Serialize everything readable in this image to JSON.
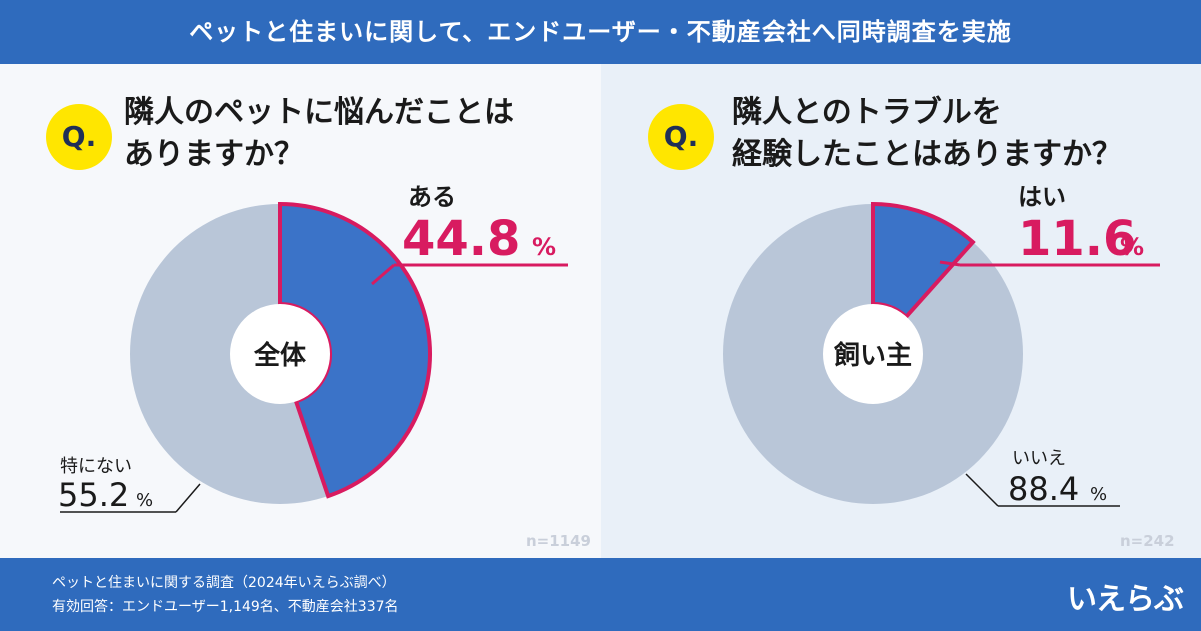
{
  "header": {
    "title": "ペットと住まいに関して、エンドユーザー・不動産会社へ同時調査を実施"
  },
  "footer": {
    "line1": "ペットと住まいに関する調査（2024年いえらぶ調べ）",
    "line2": "有効回答：エンドユーザー1,149名、不動産会社337名",
    "logo": "いえらぶ"
  },
  "left": {
    "q_badge": "Q.",
    "question_line1": "隣人のペットに悩んだことは",
    "question_line2": "ありますか？",
    "n": "n=1149"
  },
  "right": {
    "q_badge": "Q.",
    "question_line1": "隣人とのトラブルを",
    "question_line2": "経験したことはありますか？",
    "n": "n=242"
  },
  "colors": {
    "blue_slice": "#3b73c8",
    "gray_slice": "#b9c6d8",
    "highlight": "#d81b60",
    "text": "#1a1a1a"
  },
  "chart_data": [
    {
      "type": "pie",
      "center_label": "全体",
      "slices": [
        {
          "label": "ある",
          "value": 44.8,
          "display": "44.8",
          "unit": "%"
        },
        {
          "label": "特にない",
          "value": 55.2,
          "display": "55.2",
          "unit": "%"
        }
      ]
    },
    {
      "type": "pie",
      "center_label": "飼い主",
      "slices": [
        {
          "label": "はい",
          "value": 11.6,
          "display": "11.6",
          "unit": "%"
        },
        {
          "label": "いいえ",
          "value": 88.4,
          "display": "88.4",
          "unit": "%"
        }
      ]
    }
  ]
}
